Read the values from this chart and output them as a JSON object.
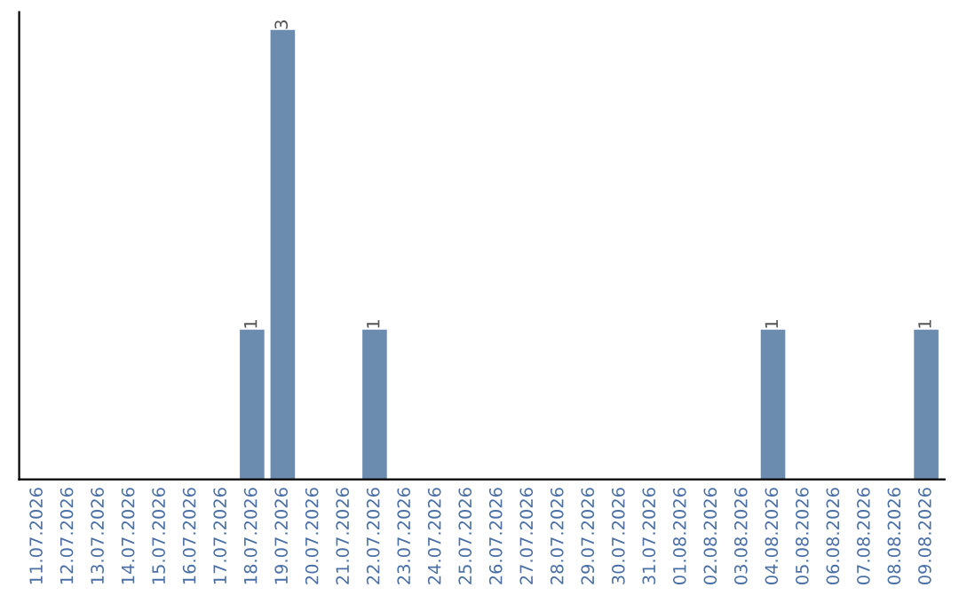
{
  "chart_data": {
    "type": "bar",
    "categories": [
      "11.07.2026",
      "12.07.2026",
      "13.07.2026",
      "14.07.2026",
      "15.07.2026",
      "16.07.2026",
      "17.07.2026",
      "18.07.2026",
      "19.07.2026",
      "20.07.2026",
      "21.07.2026",
      "22.07.2026",
      "23.07.2026",
      "24.07.2026",
      "25.07.2026",
      "26.07.2026",
      "27.07.2026",
      "28.07.2026",
      "29.07.2026",
      "30.07.2026",
      "31.07.2026",
      "01.08.2026",
      "02.08.2026",
      "03.08.2026",
      "04.08.2026",
      "05.08.2026",
      "06.08.2026",
      "07.08.2026",
      "08.08.2026",
      "09.08.2026"
    ],
    "values": [
      0,
      0,
      0,
      0,
      0,
      0,
      0,
      1,
      3,
      0,
      0,
      1,
      0,
      0,
      0,
      0,
      0,
      0,
      0,
      0,
      0,
      0,
      0,
      0,
      1,
      0,
      0,
      0,
      0,
      1
    ],
    "value_labels": [
      null,
      null,
      null,
      null,
      null,
      null,
      null,
      "1",
      "3",
      null,
      null,
      "1",
      null,
      null,
      null,
      null,
      null,
      null,
      null,
      null,
      null,
      null,
      null,
      null,
      "1",
      null,
      null,
      null,
      null,
      "1"
    ],
    "color": "#6b8cae",
    "grid": false,
    "legend": false
  }
}
